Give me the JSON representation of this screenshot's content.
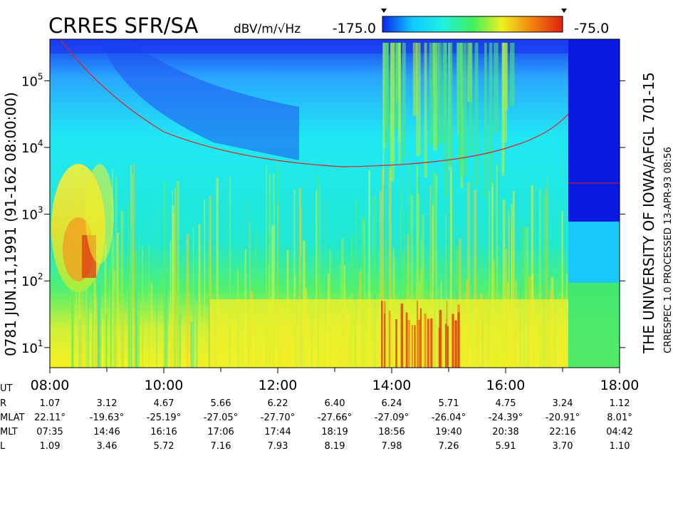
{
  "chart_data": {
    "type": "spectrogram",
    "title": "CRRES SFR/SA",
    "colorbar": {
      "unit": "dBV/m/√Hz",
      "min": {
        "value": -175,
        "label": "-175.0"
      },
      "max": {
        "value": -75,
        "label": "-75.0"
      }
    },
    "left_label": "0781   JUN.11,1991   (91-162 08:00:00)",
    "right_label": "THE UNIVERSITY OF IOWA/AFGL 701-15",
    "right_sublabel": "CRRESPEC 1.0   PROCESSED 13-APR-93   08:56",
    "log_y": true,
    "ylim": [
      5,
      420000
    ],
    "yticks": [
      {
        "value": 10,
        "label": "10",
        "exponent": "1"
      },
      {
        "value": 100,
        "label": "10",
        "exponent": "2"
      },
      {
        "value": 1000,
        "label": "10",
        "exponent": "3"
      },
      {
        "value": 10000,
        "label": "10",
        "exponent": "4"
      },
      {
        "value": 100000,
        "label": "10",
        "exponent": "5"
      }
    ],
    "xlim": [
      8,
      18
    ],
    "xticks": [
      {
        "value": 8,
        "label": "08:00"
      },
      {
        "value": 10,
        "label": "10:00"
      },
      {
        "value": 12,
        "label": "12:00"
      },
      {
        "value": 14,
        "label": "14:00"
      },
      {
        "value": 16,
        "label": "16:00"
      },
      {
        "value": 18,
        "label": "18:00"
      }
    ],
    "xminorticks": [
      9,
      11,
      13,
      15,
      17
    ],
    "ephemeris": {
      "ut_label": "UT",
      "rows": [
        {
          "label": "R",
          "values": [
            "1.07",
            "3.12",
            "4.67",
            "5.66",
            "6.22",
            "6.40",
            "6.24",
            "5.71",
            "4.75",
            "3.24",
            "1.12"
          ]
        },
        {
          "label": "MLAT",
          "values": [
            "22.11°",
            "-19.63°",
            "-25.19°",
            "-27.05°",
            "-27.70°",
            "-27.66°",
            "-27.09°",
            "-26.04°",
            "-24.39°",
            "-20.91°",
            "8.01°"
          ]
        },
        {
          "label": "MLT",
          "values": [
            "07:35",
            "14:46",
            "16:16",
            "17:06",
            "17:44",
            "18:19",
            "18:56",
            "19:40",
            "20:38",
            "22:16",
            "04:42"
          ]
        },
        {
          "label": "L",
          "values": [
            "1.09",
            "3.46",
            "5.72",
            "7.16",
            "7.93",
            "8.19",
            "7.98",
            "7.26",
            "5.91",
            "3.70",
            "1.10"
          ]
        }
      ]
    }
  }
}
